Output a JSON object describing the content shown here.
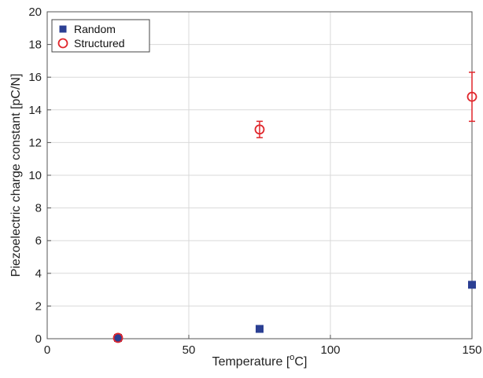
{
  "chart_data": {
    "type": "scatter",
    "xlabel": "Temperature [°C]",
    "xlabel_parts": {
      "before": "Temperature [",
      "sup": "o",
      "after": "C]"
    },
    "ylabel": "Piezoelectric charge constant [pC/N]",
    "xlim": [
      0,
      150
    ],
    "ylim": [
      0,
      20
    ],
    "x_ticks": [
      "0",
      "50",
      "100",
      "150"
    ],
    "y_ticks": [
      "0",
      "2",
      "4",
      "6",
      "8",
      "10",
      "12",
      "14",
      "16",
      "18",
      "20"
    ],
    "grid": true,
    "legend_position": "top-left",
    "series": [
      {
        "name": "Random",
        "marker": "filled-square",
        "color": "#2b3f93",
        "points": [
          {
            "x": 25,
            "y": 0.05
          },
          {
            "x": 75,
            "y": 0.6
          },
          {
            "x": 150,
            "y": 3.3
          }
        ]
      },
      {
        "name": "Structured",
        "marker": "open-circle",
        "color": "#e0262b",
        "points": [
          {
            "x": 25,
            "y": 0.05,
            "err": 0.05
          },
          {
            "x": 75,
            "y": 12.8,
            "err": 0.5
          },
          {
            "x": 150,
            "y": 14.8,
            "err": 1.5
          }
        ]
      }
    ]
  }
}
